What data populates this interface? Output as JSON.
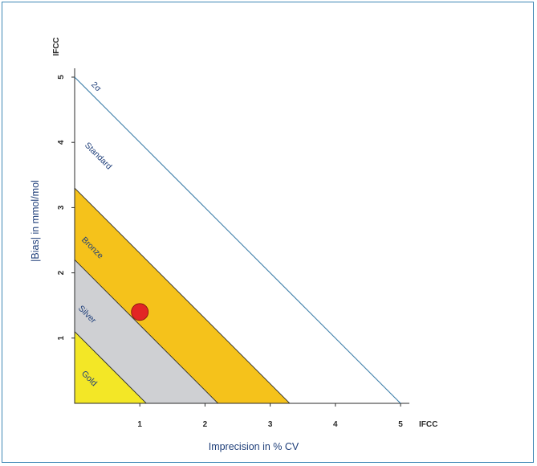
{
  "chart_data": {
    "type": "area",
    "title": "",
    "xlabel": "Imprecision in % CV",
    "ylabel": "|Bias| in mmol/mol",
    "x_unit_label": "IFCC",
    "y_unit_label": "IFCC",
    "xlim": [
      0,
      5.5
    ],
    "ylim": [
      0,
      5.5
    ],
    "x_ticks": [
      "1",
      "2",
      "3",
      "4",
      "5"
    ],
    "y_ticks": [
      "1",
      "2",
      "3",
      "4",
      "5"
    ],
    "zones": [
      {
        "name": "Gold",
        "intercept": 1.1,
        "color": "#f3e726"
      },
      {
        "name": "Silver",
        "intercept": 2.2,
        "color": "#cfd0d3"
      },
      {
        "name": "Bronze",
        "intercept": 3.3,
        "color": "#f5c21b"
      },
      {
        "name": "Standard",
        "intercept": 5.0,
        "color": "#ffffff"
      }
    ],
    "line": {
      "name": "2σ",
      "intercept": 5.0,
      "color": "#3a7ca8"
    },
    "point": {
      "x": 1.0,
      "y": 1.4,
      "color": "#e22525"
    }
  }
}
